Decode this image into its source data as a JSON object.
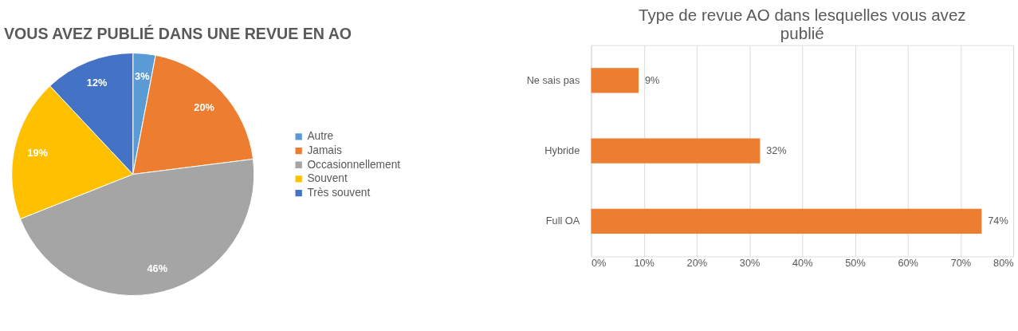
{
  "chart_data": [
    {
      "type": "pie",
      "title": "VOUS AVEZ PUBLIÉ DANS UNE REVUE EN AO",
      "categories": [
        "Autre",
        "Jamais",
        "Occasionnellement",
        "Souvent",
        "Très souvent"
      ],
      "values": [
        3,
        20,
        46,
        19,
        12
      ],
      "colors": [
        "#5b9bd5",
        "#ed7d31",
        "#a5a5a5",
        "#ffc000",
        "#4472c4"
      ],
      "value_labels": [
        "3%",
        "20%",
        "46%",
        "19%",
        "12%"
      ],
      "legend": "right"
    },
    {
      "type": "bar",
      "orientation": "horizontal",
      "title": "Type de revue AO dans lesquelles vous avez publié",
      "categories": [
        "Ne sais pas",
        "Hybride",
        "Full OA"
      ],
      "values": [
        9,
        32,
        74
      ],
      "color": "#ed7d31",
      "value_labels": [
        "9%",
        "32%",
        "74%"
      ],
      "xlim": [
        0,
        80
      ],
      "xticks": [
        {
          "value": 0,
          "label": "0%"
        },
        {
          "value": 10,
          "label": "10%"
        },
        {
          "value": 20,
          "label": "20%"
        },
        {
          "value": 30,
          "label": "30%"
        },
        {
          "value": 40,
          "label": "40%"
        },
        {
          "value": 50,
          "label": "50%"
        },
        {
          "value": 60,
          "label": "60%"
        },
        {
          "value": 70,
          "label": "70%"
        },
        {
          "value": 80,
          "label": "80%"
        }
      ],
      "grid": "x"
    }
  ]
}
